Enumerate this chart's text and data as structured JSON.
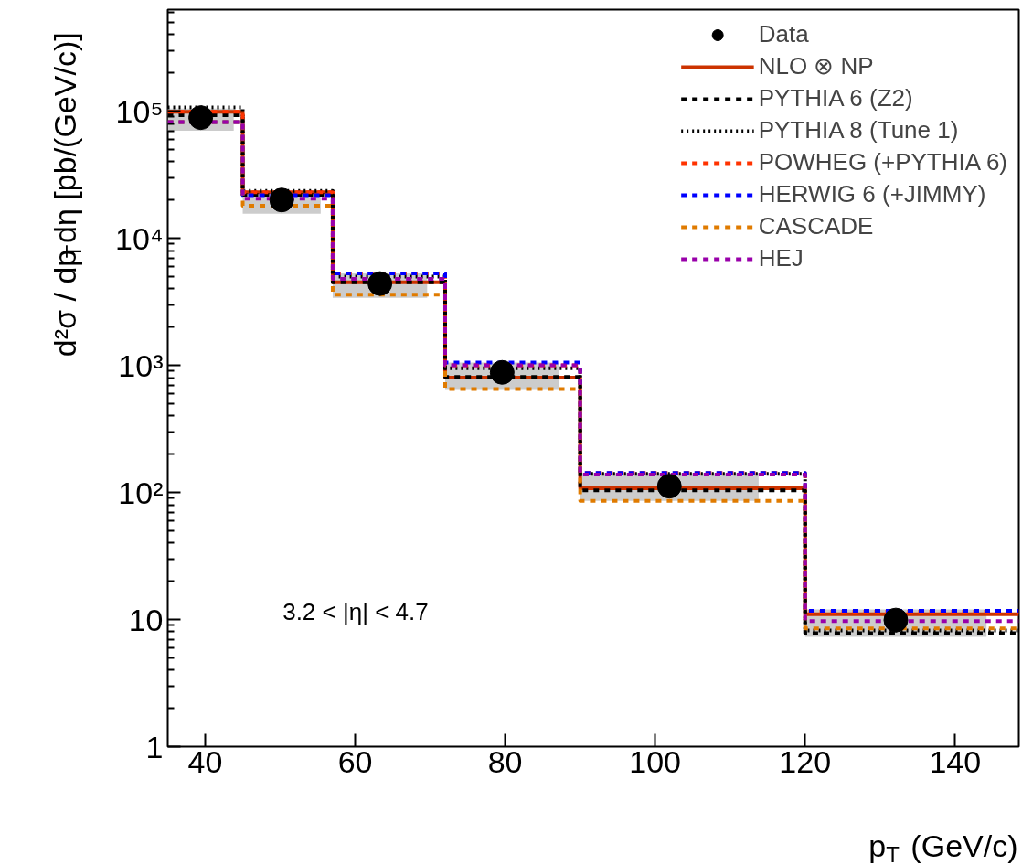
{
  "chart_data": {
    "type": "histogram",
    "xlabel": "p$_{T}$ (GeV/c)",
    "ylabel": "d²σ / dp$_{T}$dη [pb/(GeV/c)]",
    "annotations": [
      "3.2 < |η| < 4.7"
    ],
    "bins": [
      35,
      45,
      57,
      72,
      90,
      120,
      148.5
    ],
    "xlim": [
      35,
      148.5
    ],
    "xticks": [
      40,
      60,
      80,
      100,
      120,
      140
    ],
    "log": true,
    "ylim": [
      1,
      630000
    ],
    "yticks": [
      {
        "value": 1,
        "label": "1"
      },
      {
        "value": 10,
        "label": "10"
      },
      {
        "value": 100,
        "label": "10²"
      },
      {
        "value": 1000,
        "label": "10³"
      },
      {
        "value": 10000,
        "label": "10⁴"
      },
      {
        "value": 100000,
        "label": "10⁵"
      }
    ],
    "grid": false,
    "legend": "top right",
    "series": [
      {
        "name": "Data",
        "type": "scatter",
        "marker": "circle",
        "color": "#000000",
        "x": [
          39.4,
          50.2,
          63.3,
          79.6,
          101.9,
          132.1
        ],
        "values": [
          89000,
          20000,
          4400,
          880,
          112,
          9.9
        ],
        "errors": [
          [
            70000,
            105000
          ],
          [
            15600,
            23600
          ],
          [
            3400,
            5300
          ],
          [
            650,
            1050
          ],
          [
            86,
            142
          ],
          [
            7.3,
            12
          ]
        ]
      },
      {
        "name": "NLO ⊗ NP",
        "color": "#cc3300",
        "line_style": "solid",
        "values": [
          99000,
          23000,
          4500,
          800,
          108,
          11
        ]
      },
      {
        "name": "PYTHIA 6 (Z2)",
        "color": "#000000",
        "line_style": "dashed",
        "values": [
          93000,
          22000,
          4500,
          810,
          104,
          7.8
        ]
      },
      {
        "name": "PYTHIA 8 (Tune 1)",
        "color": "#000000",
        "line_style": "dotted",
        "values": [
          107000,
          23600,
          5000,
          950,
          140,
          8.2
        ]
      },
      {
        "name": "POWHEG (+PYTHIA 6)",
        "color": "#ff3300",
        "line_style": "dashed",
        "values": [
          99000,
          23000,
          5300,
          1000,
          142,
          11.5
        ]
      },
      {
        "name": "HERWIG 6 (+JIMMY)",
        "color": "#0000ff",
        "line_style": "dashed",
        "values": [
          82000,
          21800,
          5300,
          1050,
          142,
          11.7
        ]
      },
      {
        "name": "CASCADE",
        "color": "#e07b00",
        "line_style": "dashed",
        "values": [
          82000,
          18000,
          3600,
          650,
          86,
          8.5
        ]
      },
      {
        "name": "HEJ",
        "color": "#9900aa",
        "line_style": "dashed",
        "values": [
          82000,
          20500,
          4800,
          1000,
          138,
          9.7
        ]
      }
    ]
  }
}
